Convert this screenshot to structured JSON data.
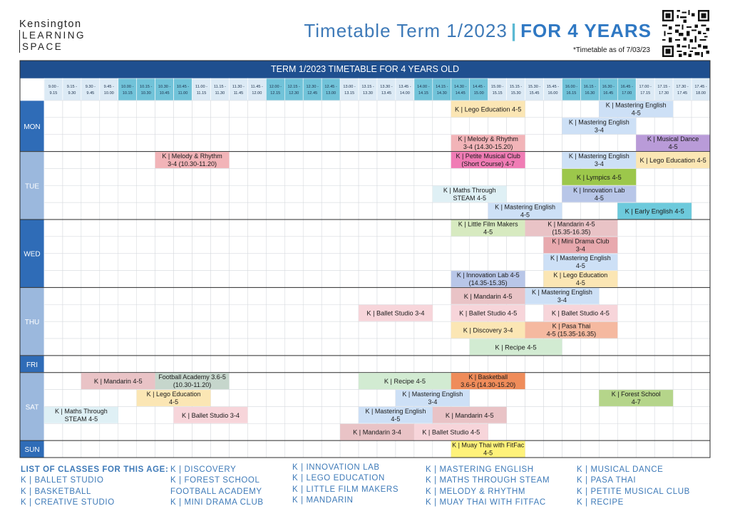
{
  "brand": {
    "line1": "Kensington",
    "line2": "LEARNING",
    "line3": "SPACE"
  },
  "header": {
    "title_part1": "Timetable Term 1/2023",
    "separator": "|",
    "title_part2": "FOR 4 YEARS",
    "as_of": "*Timetable as of 7/03/23"
  },
  "table": {
    "heading": "TERM 1/2023 TIMETABLE FOR 4 YEARS OLD",
    "time_slots": [
      [
        "9.00 -",
        "9.15"
      ],
      [
        "9.15 -",
        "9.30"
      ],
      [
        "9.30 -",
        "9.45"
      ],
      [
        "9.45 -",
        "10.00"
      ],
      [
        "10.00 -",
        "10.15"
      ],
      [
        "10.15 -",
        "10.30"
      ],
      [
        "10.30 -",
        "10.45"
      ],
      [
        "10.45 -",
        "11.00"
      ],
      [
        "11.00 -",
        "11.15"
      ],
      [
        "11.15 -",
        "11.30"
      ],
      [
        "11.30 -",
        "11.45"
      ],
      [
        "11.45 -",
        "12.00"
      ],
      [
        "12.00 -",
        "12.15"
      ],
      [
        "12.15 -",
        "12.30"
      ],
      [
        "12.30 -",
        "12.45"
      ],
      [
        "12.45 -",
        "13.00"
      ],
      [
        "13.00 -",
        "13.15"
      ],
      [
        "13.15 -",
        "13.30"
      ],
      [
        "13.30 -",
        "13.45"
      ],
      [
        "13.45 -",
        "14.00"
      ],
      [
        "14.00 -",
        "14.15"
      ],
      [
        "14.15 -",
        "14.30"
      ],
      [
        "14.30 -",
        "14.45"
      ],
      [
        "14.45 -",
        "15.00"
      ],
      [
        "15.00 -",
        "15.15"
      ],
      [
        "15.15 -",
        "15.30"
      ],
      [
        "15.30 -",
        "15.45"
      ],
      [
        "15.45 -",
        "16.00"
      ],
      [
        "16.00 -",
        "16.15"
      ],
      [
        "16.15 -",
        "16.30"
      ],
      [
        "16.30 -",
        "16.45"
      ],
      [
        "16.45 -",
        "17.00"
      ],
      [
        "17.00 -",
        "17.15"
      ],
      [
        "17.15 -",
        "17.30"
      ],
      [
        "17.30 -",
        "17.45"
      ],
      [
        "17.45 -",
        "18.00"
      ]
    ],
    "days": [
      {
        "label": "MON",
        "rows": 3
      },
      {
        "label": "TUE",
        "rows": 4
      },
      {
        "label": "WED",
        "rows": 4
      },
      {
        "label": "THU",
        "rows": 4
      },
      {
        "label": "FRI",
        "rows": 1
      },
      {
        "label": "SAT",
        "rows": 4
      },
      {
        "label": "SUN",
        "rows": 1
      }
    ],
    "classes": [
      {
        "lines": [
          "K | Lego Education 4-5"
        ],
        "row": 0,
        "start": 22,
        "span": 4,
        "color": "#fbe6b4"
      },
      {
        "lines": [
          "K | Mastering English",
          "4-5"
        ],
        "row": 0,
        "start": 30,
        "span": 4,
        "color": "#cde0f6"
      },
      {
        "lines": [
          "K | Mastering English",
          "3-4"
        ],
        "row": 1,
        "start": 28,
        "span": 4,
        "color": "#cde0f6"
      },
      {
        "lines": [
          "K | Melody & Rhythm",
          "3-4 (14.30-15.20)"
        ],
        "row": 2,
        "start": 22,
        "span": 4,
        "color": "#f2b4b8"
      },
      {
        "lines": [
          "K | Musical Dance",
          "4-5"
        ],
        "row": 2,
        "start": 32,
        "span": 4,
        "color": "#b99bd8"
      },
      {
        "lines": [
          "K | Melody & Rhythm",
          "3-4 (10.30-11.20)"
        ],
        "row": 3,
        "start": 6,
        "span": 4,
        "color": "#f2b4b8"
      },
      {
        "lines": [
          "K | Petite Musical Club",
          "(Short Course) 4-7"
        ],
        "row": 3,
        "start": 22,
        "span": 4,
        "color": "#f07cb5"
      },
      {
        "lines": [
          "K | Mastering English",
          "3-4"
        ],
        "row": 3,
        "start": 28,
        "span": 4,
        "color": "#cde0f6"
      },
      {
        "lines": [
          "K | Lego Education 4-5"
        ],
        "row": 3,
        "start": 32,
        "span": 4,
        "color": "#fbe6b4"
      },
      {
        "lines": [
          "K | Lympics 4-5"
        ],
        "row": 4,
        "start": 28,
        "span": 4,
        "color": "#9cc74b"
      },
      {
        "lines": [
          "K | Maths Through",
          "STEAM 4-5"
        ],
        "row": 5,
        "start": 21,
        "span": 4,
        "color": "#dff0f5"
      },
      {
        "lines": [
          "K | Innovation Lab",
          "4-5"
        ],
        "row": 5,
        "start": 28,
        "span": 4,
        "color": "#b8c6e8"
      },
      {
        "lines": [
          "K | Mastering English",
          "4-5"
        ],
        "row": 6,
        "start": 24,
        "span": 4,
        "color": "#cde0f6"
      },
      {
        "lines": [
          "K | Early English 4-5"
        ],
        "row": 6,
        "start": 31,
        "span": 4,
        "color": "#6dcadc"
      },
      {
        "lines": [
          "K | Little Film Makers",
          "4-5"
        ],
        "row": 7,
        "start": 22,
        "span": 4,
        "color": "#d7eac0"
      },
      {
        "lines": [
          "K | Mandarin 4-5",
          "(15.35-16.35)"
        ],
        "row": 7,
        "start": 26,
        "span": 5,
        "color": "#e9c3c6"
      },
      {
        "lines": [
          "K | Mini Drama Club",
          "3-4"
        ],
        "row": 8,
        "start": 27,
        "span": 4,
        "color": "#e8a9ae"
      },
      {
        "lines": [
          "K | Mastering English",
          "4-5"
        ],
        "row": 9,
        "start": 27,
        "span": 4,
        "color": "#cde0f6"
      },
      {
        "lines": [
          "K | Innovation Lab 4-5",
          "(14.35-15.35)"
        ],
        "row": 10,
        "start": 22,
        "span": 4,
        "color": "#b8c6e8"
      },
      {
        "lines": [
          "K | Lego Education",
          "4-5"
        ],
        "row": 10,
        "start": 27,
        "span": 4,
        "color": "#fbe6b4"
      },
      {
        "lines": [
          "K | Mandarin 4-5"
        ],
        "row": 11,
        "start": 22,
        "span": 4,
        "color": "#e9c3c6"
      },
      {
        "lines": [
          "K | Mastering English",
          "3-4"
        ],
        "row": 11,
        "start": 26,
        "span": 4,
        "color": "#cde0f6"
      },
      {
        "lines": [
          "K | Ballet Studio 3-4"
        ],
        "row": 12,
        "start": 17,
        "span": 4,
        "color": "#f7d5da"
      },
      {
        "lines": [
          "K | Ballet Studio 4-5"
        ],
        "row": 12,
        "start": 22,
        "span": 4,
        "color": "#f7d5da"
      },
      {
        "lines": [
          "K | Ballet Studio 4-5"
        ],
        "row": 12,
        "start": 27,
        "span": 4,
        "color": "#f7d5da"
      },
      {
        "lines": [
          "K | Discovery 3-4"
        ],
        "row": 13,
        "start": 22,
        "span": 4,
        "color": "#fbe6b4"
      },
      {
        "lines": [
          "K | Pasa Thai",
          "4-5 (15.35-16.35)"
        ],
        "row": 13,
        "start": 26,
        "span": 5,
        "color": "#f5b9a0"
      },
      {
        "lines": [
          "K | Recipe 4-5"
        ],
        "row": 14,
        "start": 23,
        "span": 5,
        "color": "#d2ebd2"
      },
      {
        "lines": [
          "K | Mandarin 4-5"
        ],
        "row": 16,
        "start": 2,
        "span": 4,
        "color": "#e9c3c6"
      },
      {
        "lines": [
          "Football Academy 3.6-5",
          "(10.30-11.20)"
        ],
        "row": 16,
        "start": 6,
        "span": 4,
        "color": "#c6d6cc"
      },
      {
        "lines": [
          "K | Recipe 4-5"
        ],
        "row": 16,
        "start": 17,
        "span": 5,
        "color": "#d2ebd2"
      },
      {
        "lines": [
          "K | Basketball",
          "3.6-5 (14.30-15.20)"
        ],
        "row": 16,
        "start": 22,
        "span": 4,
        "color": "#ef8c5a"
      },
      {
        "lines": [
          "K | Lego Education",
          "4-5"
        ],
        "row": 17,
        "start": 5,
        "span": 4,
        "color": "#fbe6b4"
      },
      {
        "lines": [
          "K | Mastering English",
          "3-4"
        ],
        "row": 17,
        "start": 19,
        "span": 4,
        "color": "#cde0f6"
      },
      {
        "lines": [
          "K | Forest School",
          "4-7"
        ],
        "row": 17,
        "start": 30,
        "span": 4,
        "color": "#b5d58a"
      },
      {
        "lines": [
          "K | Maths Through",
          "STEAM 4-5"
        ],
        "row": 18,
        "start": 0,
        "span": 4,
        "color": "#dff0f5"
      },
      {
        "lines": [
          "K | Ballet Studio 3-4"
        ],
        "row": 18,
        "start": 7,
        "span": 4,
        "color": "#f7d5da"
      },
      {
        "lines": [
          "K | Mastering English",
          "4-5"
        ],
        "row": 18,
        "start": 17,
        "span": 4,
        "color": "#cde0f6"
      },
      {
        "lines": [
          "K | Mandarin 4-5"
        ],
        "row": 18,
        "start": 21,
        "span": 4,
        "color": "#e9c3c6"
      },
      {
        "lines": [
          "K | Mandarin  3-4"
        ],
        "row": 19,
        "start": 16,
        "span": 4,
        "color": "#e9c3c6"
      },
      {
        "lines": [
          "K | Ballet Studio 4-5"
        ],
        "row": 19,
        "start": 20,
        "span": 4,
        "color": "#f7d5da"
      },
      {
        "lines": [
          "K | Muay Thai with FitFac",
          "4-5"
        ],
        "row": 20,
        "start": 22,
        "span": 4,
        "color": "#fff27a"
      }
    ]
  },
  "legend": {
    "heading": "LIST OF CLASSES FOR THIS AGE:",
    "columns": [
      [
        "K | BALLET STUDIO",
        "K | BASKETBALL",
        "K | CREATIVE STUDIO"
      ],
      [
        "K | DISCOVERY",
        "K | FOREST SCHOOL",
        "FOOTBALL ACADEMY",
        "K | MINI DRAMA CLUB"
      ],
      [
        "K | INNOVATION LAB",
        "K | LEGO EDUCATION",
        "K | LITTLE FILM MAKERS",
        "K | MANDARIN"
      ],
      [
        "K | MASTERING ENGLISH",
        "K | MATHS THROUGH STEAM",
        "K | MELODY & RHYTHM",
        "K | MUAY THAI WITH FITFAC"
      ],
      [
        "K | MUSICAL DANCE",
        "K | PASA THAI",
        "K | PETITE MUSICAL CLUB",
        "K | RECIPE"
      ]
    ]
  },
  "colors": {
    "navy": "#1f4f8f",
    "day_mid": "#2f6cb7",
    "day_light": "#9bb8dd",
    "slot_light": "#dceaf5",
    "slot_dark": "#71c3d9"
  }
}
